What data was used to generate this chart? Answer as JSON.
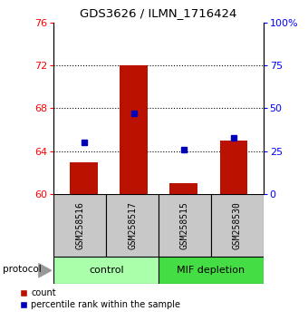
{
  "title": "GDS3626 / ILMN_1716424",
  "samples": [
    "GSM258516",
    "GSM258517",
    "GSM258515",
    "GSM258530"
  ],
  "groups": [
    {
      "name": "control",
      "indices": [
        0,
        1
      ]
    },
    {
      "name": "MIF depletion",
      "indices": [
        2,
        3
      ]
    }
  ],
  "bar_values": [
    63.0,
    72.0,
    61.0,
    65.0
  ],
  "percentile_values": [
    30.0,
    47.0,
    26.0,
    33.0
  ],
  "bar_bottom": 60,
  "ylim_left": [
    60,
    76
  ],
  "ylim_right": [
    0,
    100
  ],
  "yticks_left": [
    60,
    64,
    68,
    72,
    76
  ],
  "yticks_right": [
    0,
    25,
    50,
    75,
    100
  ],
  "yticklabels_right": [
    "0",
    "25",
    "50",
    "75",
    "100%"
  ],
  "bar_color": "#BB1100",
  "percentile_color": "#0000BB",
  "bar_width": 0.55,
  "sample_box_color": "#C8C8C8",
  "control_color": "#AAFFAA",
  "depletion_color": "#44DD44",
  "legend_count_label": "count",
  "legend_pct_label": "percentile rank within the sample",
  "protocol_label": "protocol",
  "dotted_yticks": [
    64,
    68,
    72
  ]
}
